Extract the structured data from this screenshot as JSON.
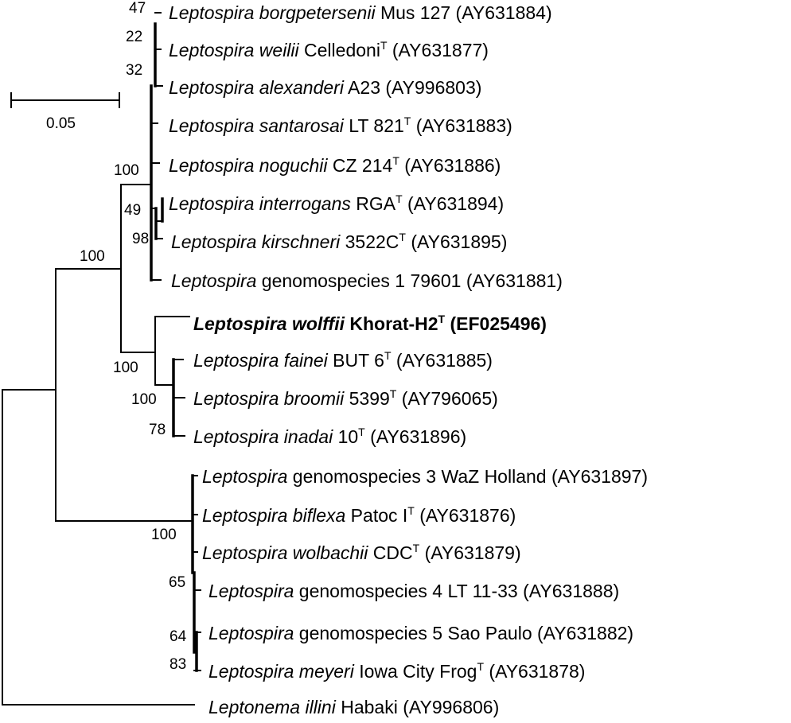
{
  "scale_bar": {
    "label": "0.05"
  },
  "taxa": [
    {
      "genus": "Leptospira",
      "species": "borgpetersenii",
      "strain": "Mus 127",
      "type_strain": false,
      "accession": "(AY631884)"
    },
    {
      "genus": "Leptospira",
      "species": "weilii",
      "strain": "Celledoni",
      "type_strain": true,
      "accession": "(AY631877)"
    },
    {
      "genus": "Leptospira",
      "species": "alexanderi",
      "strain": "A23",
      "type_strain": false,
      "accession": "(AY996803)"
    },
    {
      "genus": "Leptospira",
      "species": "santarosai",
      "strain": "LT 821",
      "type_strain": true,
      "accession": "(AY631883)"
    },
    {
      "genus": "Leptospira",
      "species": "noguchii",
      "strain": "CZ 214",
      "type_strain": true,
      "accession": "(AY631886)"
    },
    {
      "genus": "Leptospira",
      "species": "interrogans",
      "strain": "RGA",
      "type_strain": true,
      "accession": "(AY631894)"
    },
    {
      "genus": "Leptospira",
      "species": "kirschneri",
      "strain": "3522C",
      "type_strain": true,
      "accession": "(AY631895)"
    },
    {
      "genus": "Leptospira",
      "species": "",
      "strain": "genomospecies 1 79601",
      "type_strain": false,
      "accession": "(AY631881)"
    },
    {
      "genus": "Leptospira",
      "species": "wolffii",
      "strain": "Khorat-H2",
      "type_strain": true,
      "accession": "(EF025496)",
      "bold": true
    },
    {
      "genus": "Leptospira",
      "species": "fainei",
      "strain": "BUT 6",
      "type_strain": true,
      "accession": "(AY631885)"
    },
    {
      "genus": "Leptospira",
      "species": "broomii",
      "strain": "5399",
      "type_strain": true,
      "accession": "(AY796065)"
    },
    {
      "genus": "Leptospira",
      "species": "inadai",
      "strain": "10",
      "type_strain": true,
      "accession": "(AY631896)"
    },
    {
      "genus": "Leptospira",
      "species": "",
      "strain": "genomospecies 3 WaZ Holland",
      "type_strain": false,
      "accession": "(AY631897)"
    },
    {
      "genus": "Leptospira",
      "species": "biflexa",
      "strain": "Patoc I",
      "type_strain": true,
      "accession": "(AY631876)"
    },
    {
      "genus": "Leptospira",
      "species": "wolbachii",
      "strain": "CDC",
      "type_strain": true,
      "accession": "(AY631879)"
    },
    {
      "genus": "Leptospira",
      "species": "",
      "strain": "genomospecies 4 LT 11-33",
      "type_strain": false,
      "accession": "(AY631888)"
    },
    {
      "genus": "Leptospira",
      "species": "",
      "strain": "genomospecies 5 Sao Paulo",
      "type_strain": false,
      "accession": "(AY631882)"
    },
    {
      "genus": "Leptospira",
      "species": "meyeri",
      "strain": "Iowa City Frog",
      "type_strain": true,
      "accession": "(AY631878)"
    },
    {
      "genus": "Leptonema",
      "species": "illini",
      "strain": "Habaki",
      "type_strain": false,
      "accession": "(AY996806)"
    }
  ],
  "type_marker": "T",
  "bootstrap_values": [
    "47",
    "22",
    "32",
    "100",
    "49",
    "98",
    "100",
    "100",
    "100",
    "78",
    "100",
    "65",
    "64",
    "83"
  ]
}
